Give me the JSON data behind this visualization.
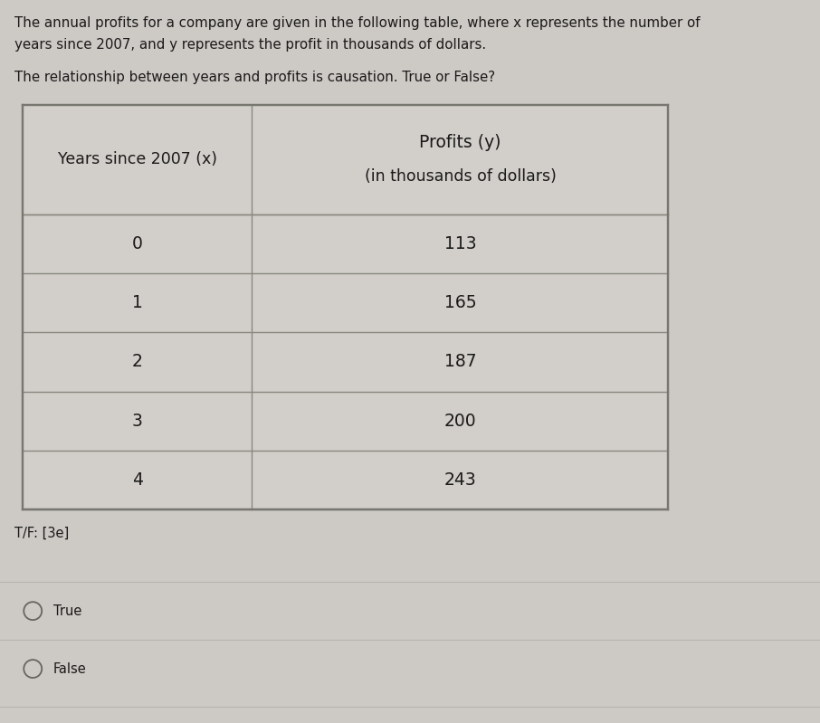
{
  "title_line1": "The annual profits for a company are given in the following table, where x represents the number of",
  "title_line2": "years since 2007, and y represents the profit in thousands of dollars.",
  "question": "The relationship between years and profits is causation. True or False?",
  "col1_header_line1": "Years since 2007 (x)",
  "col2_header_line1": "Profits (y)",
  "col2_header_line2": "(in thousands of dollars)",
  "x_values": [
    "0",
    "1",
    "2",
    "3",
    "4"
  ],
  "y_values": [
    "113",
    "165",
    "187",
    "200",
    "243"
  ],
  "tf_label": "T/F: [3e]",
  "option1": "True",
  "option2": "False",
  "bg_color": "#cdc9c4",
  "table_bg": "#d2cec9",
  "text_color": "#1a1a1a",
  "line_color": "#888880",
  "border_color": "#777770",
  "radio_color": "#666660",
  "separator_color": "#b8b4af"
}
